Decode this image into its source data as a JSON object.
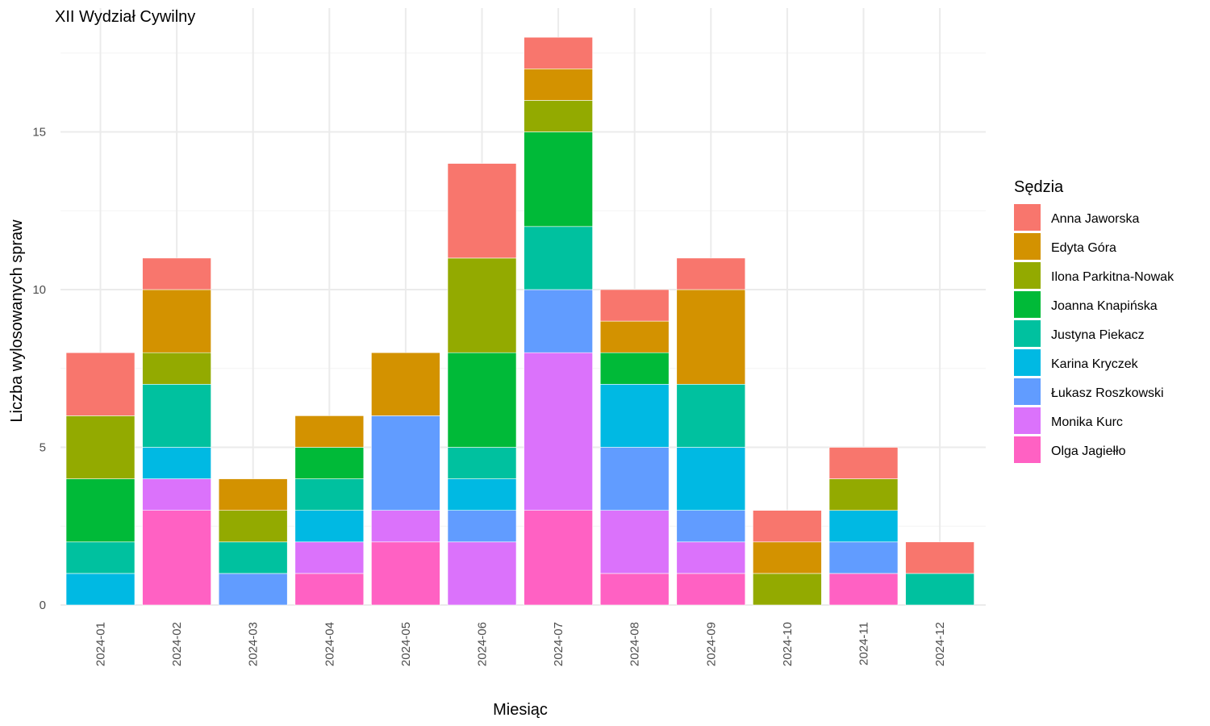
{
  "chart_data": {
    "type": "bar",
    "stacked": true,
    "title": "XII Wydział Cywilny",
    "xlabel": "Miesiąc",
    "ylabel": "Liczba wylosowanych spraw",
    "ylim": [
      0,
      18.9
    ],
    "yticks": [
      0,
      5,
      10,
      15
    ],
    "grid": true,
    "legend_title": "Sędzia",
    "legend_position": "right",
    "categories": [
      "2024-01",
      "2024-02",
      "2024-03",
      "2024-04",
      "2024-05",
      "2024-06",
      "2024-07",
      "2024-08",
      "2024-09",
      "2024-10",
      "2024-11",
      "2024-12"
    ],
    "series": [
      {
        "name": "Anna Jaworska",
        "color": "#F8766D",
        "values": [
          2,
          1,
          0,
          0,
          0,
          3,
          1,
          1,
          1,
          1,
          1,
          1
        ]
      },
      {
        "name": "Edyta Góra",
        "color": "#D39200",
        "values": [
          0,
          2,
          1,
          1,
          2,
          0,
          1,
          1,
          3,
          1,
          0,
          0
        ]
      },
      {
        "name": "Ilona Parkitna-Nowak",
        "color": "#93AA00",
        "values": [
          2,
          1,
          1,
          0,
          0,
          3,
          1,
          0,
          0,
          1,
          1,
          0
        ]
      },
      {
        "name": "Joanna Knapińska",
        "color": "#00BA38",
        "values": [
          2,
          0,
          0,
          1,
          0,
          3,
          3,
          1,
          0,
          0,
          0,
          0
        ]
      },
      {
        "name": "Justyna Piekacz",
        "color": "#00C19F",
        "values": [
          1,
          2,
          1,
          1,
          0,
          1,
          2,
          0,
          2,
          0,
          0,
          1
        ]
      },
      {
        "name": "Karina Kryczek",
        "color": "#00B9E3",
        "values": [
          1,
          1,
          0,
          1,
          0,
          1,
          0,
          2,
          2,
          0,
          1,
          0
        ]
      },
      {
        "name": "Łukasz Roszkowski",
        "color": "#619CFF",
        "values": [
          0,
          0,
          1,
          0,
          3,
          1,
          2,
          2,
          1,
          0,
          1,
          0
        ]
      },
      {
        "name": "Monika Kurc",
        "color": "#DB72FB",
        "values": [
          0,
          1,
          0,
          1,
          1,
          2,
          5,
          2,
          1,
          0,
          0,
          0
        ]
      },
      {
        "name": "Olga Jagiełło",
        "color": "#FF61C3",
        "values": [
          0,
          3,
          0,
          1,
          2,
          0,
          3,
          1,
          1,
          0,
          1,
          0
        ]
      }
    ]
  }
}
